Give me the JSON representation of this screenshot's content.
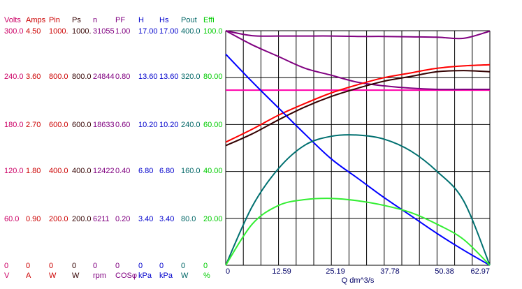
{
  "chart_data": {
    "type": "line",
    "xlabel": "Q  dm^3/s",
    "x_ticks": [
      "0",
      "12.59",
      "25.19",
      "37.78",
      "50.38",
      "62.97"
    ],
    "xlim": [
      0,
      62.97
    ],
    "grid": true,
    "axes": [
      {
        "name": "Volts",
        "unit": "V",
        "color": "#cc0066",
        "ticks": [
          "300.0",
          "240.0",
          "180.0",
          "120.0",
          "60.0",
          "0"
        ]
      },
      {
        "name": "Amps",
        "unit": "A",
        "color": "#cc0000",
        "ticks": [
          "4.50",
          "3.60",
          "2.70",
          "1.80",
          "0.90",
          "0"
        ]
      },
      {
        "name": "Pin",
        "unit": "W",
        "color": "#cc0000",
        "ticks": [
          "1000.",
          "800.0",
          "600.0",
          "400.0",
          "200.0",
          "0"
        ]
      },
      {
        "name": "Ps",
        "unit": "W",
        "color": "#330000",
        "ticks": [
          "1000.",
          "800.0",
          "600.0",
          "400.0",
          "200.0",
          "0"
        ]
      },
      {
        "name": "n",
        "unit": "rpm",
        "color": "#800080",
        "ticks": [
          "31055",
          "24844",
          "18633",
          "12422",
          "6211",
          "0"
        ]
      },
      {
        "name": "PF",
        "unit": "COSφ",
        "color": "#800080",
        "ticks": [
          "1.00",
          "0.80",
          "0.60",
          "0.40",
          "0.20",
          "0"
        ]
      },
      {
        "name": "H",
        "unit": "kPa",
        "color": "#0000cc",
        "ticks": [
          "17.00",
          "13.60",
          "10.20",
          "6.80",
          "3.40",
          "0"
        ]
      },
      {
        "name": "Hs",
        "unit": "kPa",
        "color": "#0000cc",
        "ticks": [
          "17.00",
          "13.60",
          "10.20",
          "6.80",
          "3.40",
          "0"
        ]
      },
      {
        "name": "Pout",
        "unit": "W",
        "color": "#006666",
        "ticks": [
          "400.0",
          "320.0",
          "240.0",
          "160.0",
          "80.0",
          "0"
        ]
      },
      {
        "name": "Effi",
        "unit": "%",
        "color": "#00cc00",
        "ticks": [
          "100.0",
          "80.00",
          "60.00",
          "40.00",
          "20.00",
          "0"
        ]
      }
    ],
    "series": [
      {
        "color": "#ff00aa",
        "axis": "Volts",
        "x": [
          0,
          62.97
        ],
        "y": [
          224,
          224
        ]
      },
      {
        "color": "#800080",
        "axis": "n",
        "x": [
          0,
          6.3,
          12.6,
          18.9,
          25.2,
          31.5,
          37.8,
          44.1,
          50.4,
          56.7,
          62.97
        ],
        "y": [
          31055,
          30400,
          30350,
          30350,
          30350,
          30300,
          30300,
          30250,
          30200,
          30050,
          31000
        ]
      },
      {
        "color": "#800080",
        "axis": "PF",
        "x": [
          0,
          6.3,
          12.6,
          18.9,
          25.2,
          31.5,
          37.8,
          44.1,
          50.4,
          56.7,
          62.97
        ],
        "y": [
          1.0,
          0.94,
          0.89,
          0.84,
          0.81,
          0.78,
          0.765,
          0.755,
          0.75,
          0.75,
          0.75
        ]
      },
      {
        "color": "#ff0000",
        "axis": "Pin",
        "x": [
          0,
          6.3,
          12.6,
          18.9,
          25.2,
          31.5,
          37.8,
          44.1,
          50.4,
          56.7,
          62.97
        ],
        "y": [
          525,
          580,
          640,
          690,
          735,
          770,
          800,
          820,
          840,
          850,
          855
        ]
      },
      {
        "color": "#330000",
        "axis": "Ps",
        "x": [
          0,
          6.3,
          12.6,
          18.9,
          25.2,
          31.5,
          37.8,
          44.1,
          50.4,
          56.7,
          62.97
        ],
        "y": [
          510,
          560,
          620,
          675,
          720,
          755,
          785,
          805,
          825,
          830,
          825
        ]
      },
      {
        "color": "#0000ff",
        "axis": "H",
        "x": [
          0,
          6.3,
          12.6,
          18.9,
          25.2,
          31.5,
          37.8,
          44.1,
          50.4,
          56.7,
          62.97
        ],
        "y": [
          15.3,
          13.3,
          11.4,
          9.5,
          7.7,
          6.3,
          4.9,
          3.6,
          2.3,
          1.1,
          0.0
        ]
      },
      {
        "color": "#007070",
        "axis": "Pout",
        "x": [
          0,
          6.3,
          12.6,
          18.9,
          25.2,
          31.5,
          37.8,
          44.1,
          50.4,
          56.7,
          62.97
        ],
        "y": [
          0,
          100,
          165,
          205,
          220,
          222,
          215,
          195,
          160,
          110,
          0
        ]
      },
      {
        "color": "#33ee33",
        "axis": "Effi",
        "x": [
          0,
          6.3,
          12.6,
          18.9,
          25.2,
          31.5,
          37.8,
          44.1,
          50.4,
          56.7,
          62.97
        ],
        "y": [
          0,
          17.5,
          25.5,
          28.0,
          28.5,
          27.5,
          25.5,
          22.5,
          17.5,
          11.0,
          0
        ]
      }
    ]
  }
}
